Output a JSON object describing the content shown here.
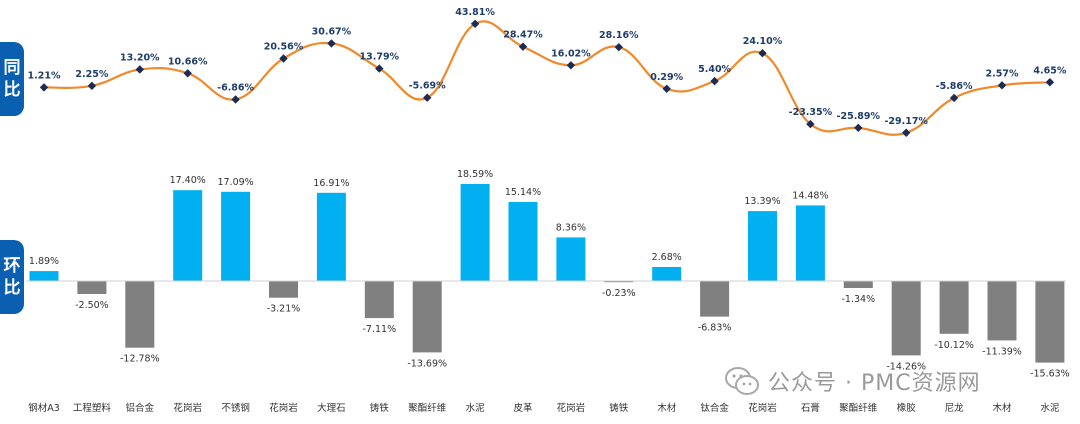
{
  "labels": {
    "yoy": [
      "同",
      "比"
    ],
    "mom": [
      "环",
      "比"
    ]
  },
  "watermark": "公众号 · PMC资源网",
  "colors": {
    "line": "#f0892a",
    "marker": "#1c2b55",
    "line_label": "#1f3d6b",
    "bar_positive": "#00b0f0",
    "bar_negative": "#808080",
    "tag_bg": "#0b5fb0"
  },
  "chart_data": [
    {
      "type": "line",
      "name": "同比",
      "categories": [
        "钢材A3",
        "工程塑料",
        "铝合金",
        "花岗岩",
        "不锈钢",
        "花岗岩",
        "大理石",
        "铸铁",
        "聚酯纤维",
        "水泥",
        "皮革",
        "花岗岩",
        "铸铁",
        "木材",
        "钛合金",
        "花岗岩",
        "石膏",
        "聚酯纤维",
        "橡胶",
        "尼龙",
        "木材",
        "水泥"
      ],
      "values": [
        1.21,
        2.25,
        13.2,
        10.66,
        -6.86,
        20.56,
        30.67,
        13.79,
        -5.69,
        43.81,
        28.47,
        16.02,
        28.16,
        0.29,
        5.4,
        24.1,
        -23.35,
        -25.89,
        -29.17,
        -5.86,
        2.57,
        4.65
      ],
      "value_labels": [
        "1.21%",
        "2.25%",
        "13.20%",
        "10.66%",
        "-6.86%",
        "20.56%",
        "30.67%",
        "13.79%",
        "-5.69%",
        "43.81%",
        "28.47%",
        "16.02%",
        "28.16%",
        "0.29%",
        "5.40%",
        "24.10%",
        "-23.35%",
        "-25.89%",
        "-29.17%",
        "-5.86%",
        "2.57%",
        "4.65%"
      ],
      "ylim": [
        -30,
        45
      ],
      "grid": false,
      "legend": "none"
    },
    {
      "type": "bar",
      "name": "环比",
      "categories": [
        "钢材A3",
        "工程塑料",
        "铝合金",
        "花岗岩",
        "不锈钢",
        "花岗岩",
        "大理石",
        "铸铁",
        "聚酯纤维",
        "水泥",
        "皮革",
        "花岗岩",
        "铸铁",
        "木材",
        "钛合金",
        "花岗岩",
        "石膏",
        "聚酯纤维",
        "橡胶",
        "尼龙",
        "木材",
        "水泥"
      ],
      "values": [
        1.89,
        -2.5,
        -12.78,
        17.4,
        17.09,
        -3.21,
        16.91,
        -7.11,
        -13.69,
        18.59,
        15.14,
        8.36,
        -0.23,
        2.68,
        -6.83,
        13.39,
        14.48,
        -1.34,
        -14.26,
        -10.12,
        -11.39,
        -15.63
      ],
      "value_labels": [
        "1.89%",
        "-2.50%",
        "-12.78%",
        "17.40%",
        "17.09%",
        "-3.21%",
        "16.91%",
        "-7.11%",
        "-13.69%",
        "18.59%",
        "15.14%",
        "8.36%",
        "-0.23%",
        "2.68%",
        "-6.83%",
        "13.39%",
        "14.48%",
        "-1.34%",
        "-14.26%",
        "-10.12%",
        "-11.39%",
        "-15.63%"
      ],
      "ylim": [
        -16,
        19
      ],
      "grid": false,
      "legend": "none"
    }
  ]
}
